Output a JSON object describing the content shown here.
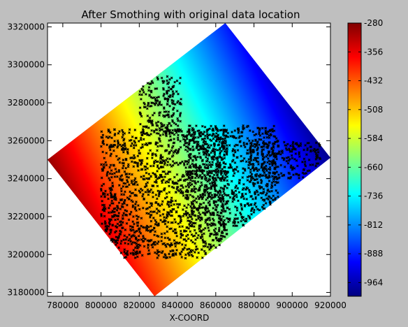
{
  "chart_data": {
    "type": "heatmap",
    "title": "After Smothing with original data location",
    "xlabel": "X-COORD",
    "ylabel": "",
    "xlim": [
      772000,
      920000
    ],
    "ylim": [
      3178000,
      3322000
    ],
    "x_ticks": [
      "780000",
      "800000",
      "820000",
      "840000",
      "860000",
      "880000",
      "900000",
      "920000"
    ],
    "x_tick_values": [
      780000,
      800000,
      820000,
      840000,
      860000,
      880000,
      900000,
      920000
    ],
    "y_ticks": [
      "3180000",
      "3200000",
      "3220000",
      "3240000",
      "3260000",
      "3280000",
      "3300000",
      "3320000"
    ],
    "y_tick_values": [
      3180000,
      3200000,
      3220000,
      3240000,
      3260000,
      3280000,
      3300000,
      3320000
    ],
    "grid": false,
    "colormap": "jet",
    "domain_corners": [
      {
        "x": 772000,
        "y": 3250000
      },
      {
        "x": 865000,
        "y": 3322000
      },
      {
        "x": 920000,
        "y": 3251000
      },
      {
        "x": 828000,
        "y": 3178000
      }
    ],
    "field_gradient": {
      "high_point": {
        "x": 790000,
        "y": 3205000,
        "value": -280
      },
      "low_point": {
        "x": 915000,
        "y": 3265000,
        "value": -1000
      }
    },
    "colorbar": {
      "min": -1000,
      "max": -280,
      "ticks": [
        "-280",
        "-356",
        "-432",
        "-508",
        "-584",
        "-660",
        "-736",
        "-812",
        "-888",
        "-964"
      ],
      "tick_values": [
        -280,
        -356,
        -432,
        -508,
        -584,
        -660,
        -736,
        -812,
        -888,
        -964
      ]
    },
    "data_locations": {
      "marker": "x",
      "color": "#000000",
      "regions": [
        {
          "x0": 820000,
          "x1": 842000,
          "y0": 3264000,
          "y1": 3294000
        },
        {
          "x0": 800000,
          "x1": 866000,
          "y0": 3198000,
          "y1": 3266000
        },
        {
          "x0": 845000,
          "x1": 893000,
          "y0": 3215000,
          "y1": 3268000
        },
        {
          "x0": 878000,
          "x1": 915000,
          "y0": 3240000,
          "y1": 3260000
        }
      ]
    }
  }
}
